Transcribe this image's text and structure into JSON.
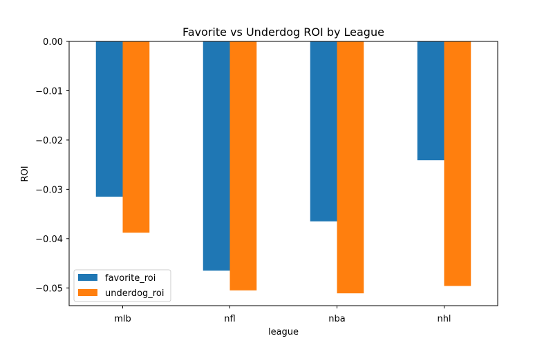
{
  "chart_data": {
    "type": "bar",
    "title": "Favorite vs Underdog ROI by League",
    "xlabel": "league",
    "ylabel": "ROI",
    "categories": [
      "mlb",
      "nfl",
      "nba",
      "nhl"
    ],
    "series": [
      {
        "name": "favorite_roi",
        "color": "#1f77b4",
        "values": [
          -0.0315,
          -0.0465,
          -0.0365,
          -0.0241
        ]
      },
      {
        "name": "underdog_roi",
        "color": "#ff7f0e",
        "values": [
          -0.0388,
          -0.0505,
          -0.0511,
          -0.0496
        ]
      }
    ],
    "ylim": [
      -0.0536,
      0.0
    ],
    "yticks": [
      0.0,
      -0.01,
      -0.02,
      -0.03,
      -0.04,
      -0.05
    ],
    "ytick_labels": [
      "0.00",
      "−0.01",
      "−0.02",
      "−0.03",
      "−0.04",
      "−0.05"
    ],
    "grid": false,
    "legend_position": "lower-left"
  }
}
